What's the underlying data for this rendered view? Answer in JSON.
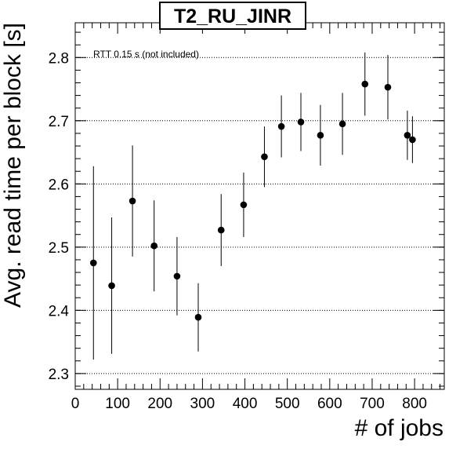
{
  "chart_data": {
    "type": "scatter",
    "title": "T2_RU_JINR",
    "xlabel": "# of jobs",
    "ylabel": "Avg. read time per block [s]",
    "annotation": "RTT 0.15 s (not included)",
    "xlim": [
      0,
      870
    ],
    "ylim": [
      2.275,
      2.855
    ],
    "xticks": [
      0,
      100,
      200,
      300,
      400,
      500,
      600,
      700,
      800
    ],
    "yticks": [
      2.3,
      2.4,
      2.5,
      2.6,
      2.7,
      2.8
    ],
    "ytick_labels": [
      "2.3",
      "2.4",
      "2.5",
      "2.6",
      "2.7",
      "2.8"
    ],
    "grid": "horizontal-dotted",
    "points": [
      {
        "x": 43,
        "y": 2.475,
        "err": 0.153
      },
      {
        "x": 86,
        "y": 2.439,
        "err": 0.108
      },
      {
        "x": 135,
        "y": 2.573,
        "err": 0.088
      },
      {
        "x": 186,
        "y": 2.502,
        "err": 0.072
      },
      {
        "x": 240,
        "y": 2.454,
        "err": 0.062
      },
      {
        "x": 290,
        "y": 2.389,
        "err": 0.054
      },
      {
        "x": 344,
        "y": 2.527,
        "err": 0.057
      },
      {
        "x": 397,
        "y": 2.567,
        "err": 0.051
      },
      {
        "x": 446,
        "y": 2.643,
        "err": 0.048
      },
      {
        "x": 486,
        "y": 2.691,
        "err": 0.049
      },
      {
        "x": 532,
        "y": 2.698,
        "err": 0.046
      },
      {
        "x": 578,
        "y": 2.677,
        "err": 0.048
      },
      {
        "x": 630,
        "y": 2.695,
        "err": 0.049
      },
      {
        "x": 683,
        "y": 2.758,
        "err": 0.05
      },
      {
        "x": 737,
        "y": 2.753,
        "err": 0.051
      },
      {
        "x": 783,
        "y": 2.677,
        "err": 0.039
      },
      {
        "x": 795,
        "y": 2.67,
        "err": 0.037
      }
    ]
  }
}
